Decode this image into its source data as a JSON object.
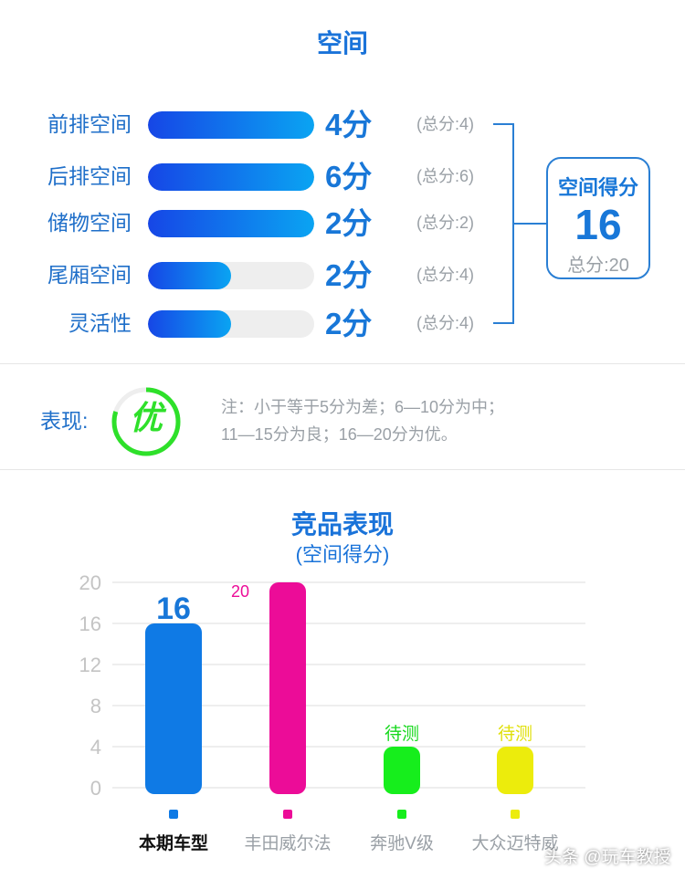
{
  "section_title": "空间",
  "space_rows": [
    {
      "label": "前排空间",
      "score": "4分",
      "total": "(总分:4)",
      "fill_fraction": 1.0
    },
    {
      "label": "后排空间",
      "score": "6分",
      "total": "(总分:6)",
      "fill_fraction": 1.0
    },
    {
      "label": "储物空间",
      "score": "2分",
      "total": "(总分:2)",
      "fill_fraction": 1.0
    },
    {
      "label": "尾厢空间",
      "score": "2分",
      "total": "(总分:4)",
      "fill_fraction": 0.5
    },
    {
      "label": "灵活性",
      "score": "2分",
      "total": "(总分:4)",
      "fill_fraction": 0.5
    }
  ],
  "score_box": {
    "title": "空间得分",
    "value": "16",
    "total": "总分:20"
  },
  "performance": {
    "label": "表现:",
    "grade": "优",
    "grade_fraction": 0.8,
    "note_line1": "注：小于等于5分为差；6—10分为中；",
    "note_line2": "11—15分为良；16—20分为优。"
  },
  "colors": {
    "accent_blue": "#1877d8",
    "bar_gradient_start": "#1646e6",
    "bar_gradient_end": "#0aa4f2",
    "grade_green": "#2ee02a"
  },
  "chart_data": {
    "type": "bar",
    "title": "竞品表现",
    "subtitle": "(空间得分)",
    "ylim": [
      0,
      20
    ],
    "yticks": [
      "20",
      "16",
      "12",
      "8",
      "4",
      "0"
    ],
    "grid": true,
    "categories": [
      "本期车型",
      "丰田威尔法",
      "奔驰V级",
      "大众迈特威"
    ],
    "values": [
      16,
      20,
      4,
      4
    ],
    "data_labels": [
      "16",
      "20",
      "待测",
      "待测"
    ],
    "colors": [
      "#0f7ae5",
      "#ec0c98",
      "#16ee1c",
      "#ecec0c"
    ],
    "label_colors": [
      "#1877d8",
      "#ec0c98",
      "#16d81c",
      "#e0e00a"
    ]
  },
  "watermark": "头条 @玩车教授"
}
